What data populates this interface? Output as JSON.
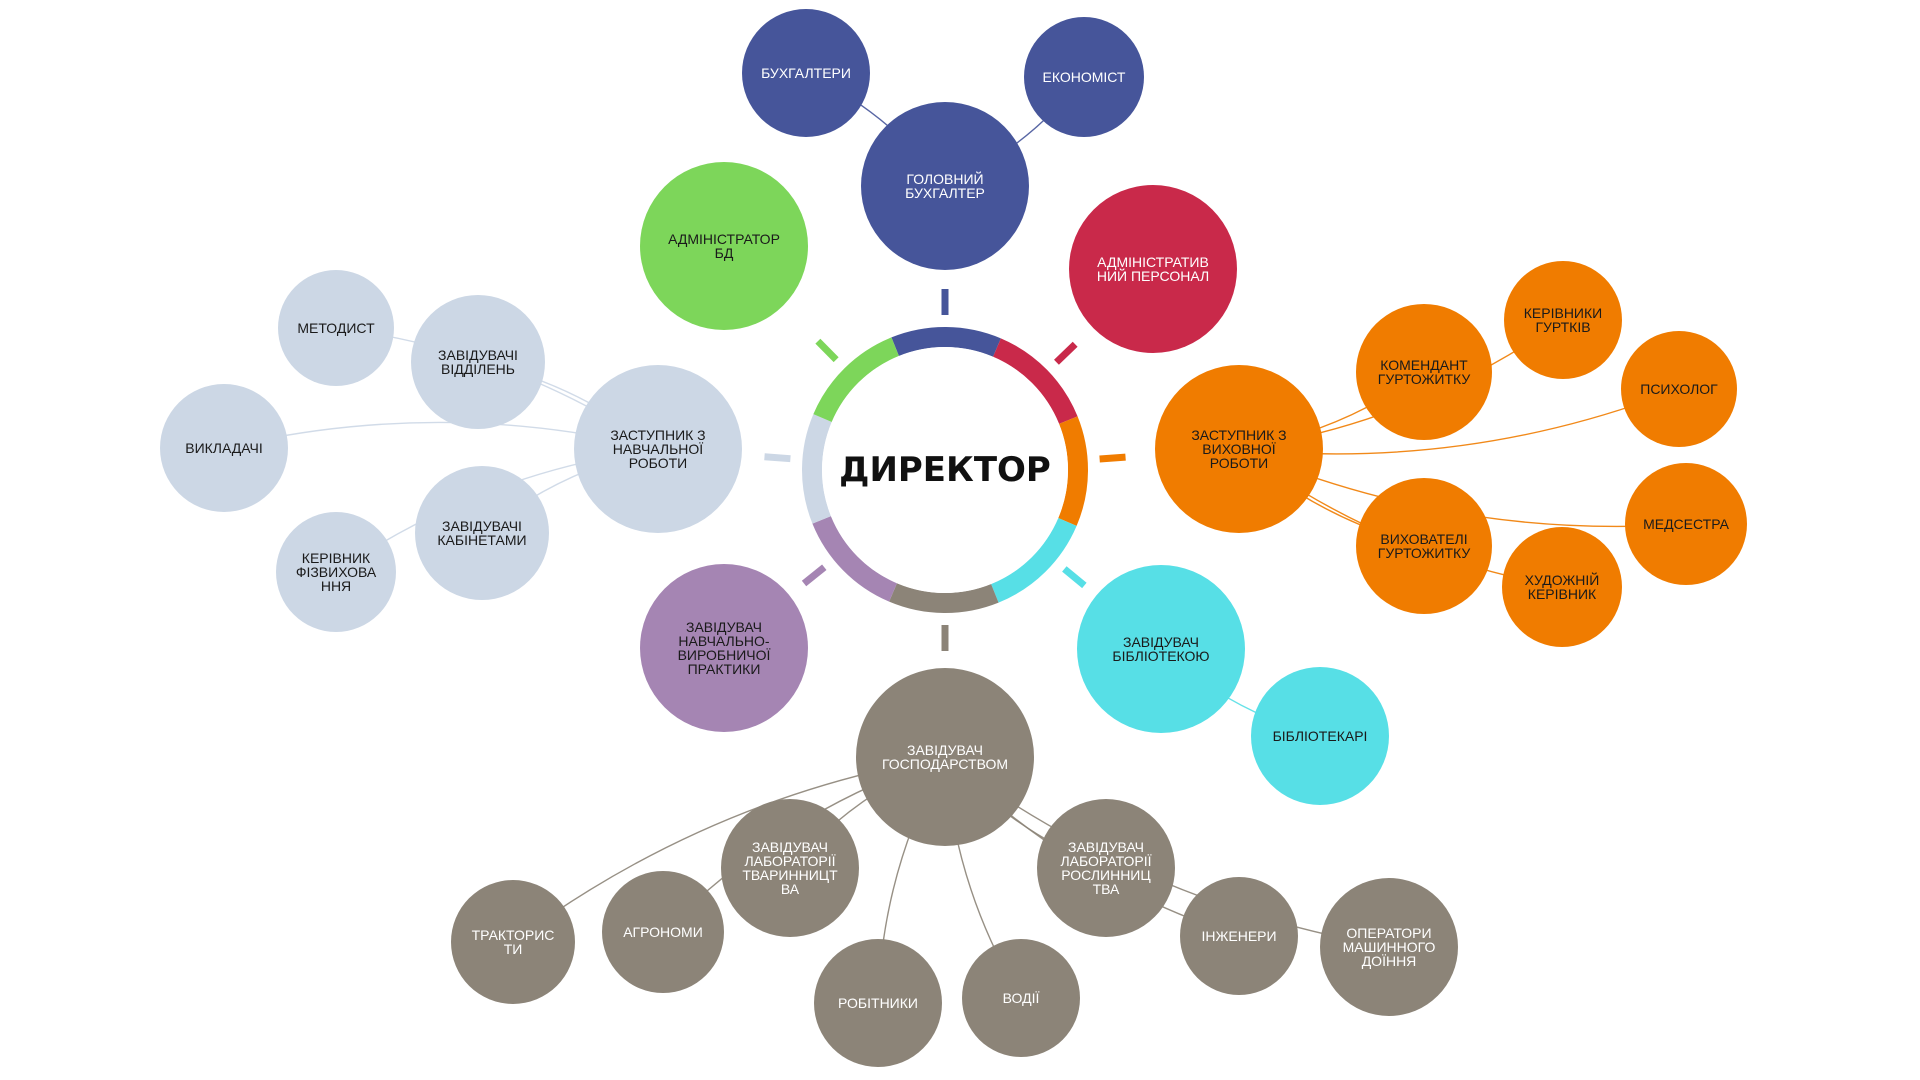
{
  "colors": {
    "accounting": "#46559a",
    "admin_db": "#7dd65a",
    "admin_staff": "#c9294a",
    "education": "#ccd7e5",
    "upbringing": "#f07c00",
    "library": "#57dfe6",
    "practice": "#a585b3",
    "household": "#8c8478",
    "center_ring_fill": "#ffffff",
    "text_light": "#ffffff",
    "text_dark": "#1a1a1a"
  },
  "center": {
    "label": "ДИРЕКТОР"
  },
  "nodes": [
    {
      "id": "chief-accountant",
      "group": "accounting",
      "lines": [
        "ГОЛОВНИЙ",
        "БУХГАЛТЕР"
      ]
    },
    {
      "id": "accountants",
      "group": "accounting",
      "lines": [
        "БУХГАЛТЕРИ"
      ]
    },
    {
      "id": "economist",
      "group": "accounting",
      "lines": [
        "ЕКОНОМІСТ"
      ]
    },
    {
      "id": "admin-db",
      "group": "admin_db",
      "lines": [
        "АДМІНІСТРАТОР",
        "БД"
      ]
    },
    {
      "id": "admin-staff",
      "group": "admin_staff",
      "lines": [
        "АДМІНІСТРАТИВ",
        "НИЙ ПЕРСОНАЛ"
      ]
    },
    {
      "id": "deputy-education",
      "group": "education",
      "lines": [
        "ЗАСТУПНИК З",
        "НАВЧАЛЬНОЇ",
        "РОБОТИ"
      ]
    },
    {
      "id": "methodist",
      "group": "education",
      "lines": [
        "МЕТОДИСТ"
      ]
    },
    {
      "id": "dept-heads",
      "group": "education",
      "lines": [
        "ЗАВІДУВАЧІ",
        "ВІДДІЛЕНЬ"
      ]
    },
    {
      "id": "teachers",
      "group": "education",
      "lines": [
        "ВИКЛАДАЧІ"
      ]
    },
    {
      "id": "cabinet-heads",
      "group": "education",
      "lines": [
        "ЗАВІДУВАЧІ",
        "КАБІНЕТАМИ"
      ]
    },
    {
      "id": "pe-head",
      "group": "education",
      "lines": [
        "КЕРІВНИК",
        "ФІЗВИХОВА",
        "ННЯ"
      ]
    },
    {
      "id": "deputy-upbringing",
      "group": "upbringing",
      "lines": [
        "ЗАСТУПНИК З",
        "ВИХОВНОЇ",
        "РОБОТИ"
      ]
    },
    {
      "id": "dorm-commandant",
      "group": "upbringing",
      "lines": [
        "КОМЕНДАНТ",
        "ГУРТОЖИТКУ"
      ]
    },
    {
      "id": "club-heads",
      "group": "upbringing",
      "lines": [
        "КЕРІВНИКИ",
        "ГУРТКІВ"
      ]
    },
    {
      "id": "psychologist",
      "group": "upbringing",
      "lines": [
        "ПСИХОЛОГ"
      ]
    },
    {
      "id": "nurse",
      "group": "upbringing",
      "lines": [
        "МЕДСЕСТРА"
      ]
    },
    {
      "id": "dorm-tutors",
      "group": "upbringing",
      "lines": [
        "ВИХОВАТЕЛІ",
        "ГУРТОЖИТКУ"
      ]
    },
    {
      "id": "art-director",
      "group": "upbringing",
      "lines": [
        "ХУДОЖНІЙ",
        "КЕРІВНИК"
      ]
    },
    {
      "id": "library-head",
      "group": "library",
      "lines": [
        "ЗАВІДУВАЧ",
        "БІБЛІОТЕКОЮ"
      ]
    },
    {
      "id": "librarians",
      "group": "library",
      "lines": [
        "БІБЛІОТЕКАРІ"
      ]
    },
    {
      "id": "practice-head",
      "group": "practice",
      "lines": [
        "ЗАВІДУВАЧ",
        "НАВЧАЛЬНО-",
        "ВИРОБНИЧОЇ",
        "ПРАКТИКИ"
      ]
    },
    {
      "id": "household-head",
      "group": "household",
      "lines": [
        "ЗАВІДУВАЧ",
        "ГОСПОДАРСТВОМ"
      ]
    },
    {
      "id": "tractor-drivers",
      "group": "household",
      "lines": [
        "ТРАКТОРИС",
        "ТИ"
      ]
    },
    {
      "id": "agronomists",
      "group": "household",
      "lines": [
        "АГРОНОМИ"
      ]
    },
    {
      "id": "livestock-lab-head",
      "group": "household",
      "lines": [
        "ЗАВІДУВАЧ",
        "ЛАБОРАТОРІЇ",
        "ТВАРИННИЦТ",
        "ВА"
      ]
    },
    {
      "id": "workers",
      "group": "household",
      "lines": [
        "РОБІТНИКИ"
      ]
    },
    {
      "id": "drivers",
      "group": "household",
      "lines": [
        "ВОДІЇ"
      ]
    },
    {
      "id": "crop-lab-head",
      "group": "household",
      "lines": [
        "ЗАВІДУВАЧ",
        "ЛАБОРАТОРІЇ",
        "РОСЛИННИЦ",
        "ТВА"
      ]
    },
    {
      "id": "engineers",
      "group": "household",
      "lines": [
        "ІНЖЕНЕРИ"
      ]
    },
    {
      "id": "milking-operators",
      "group": "household",
      "lines": [
        "ОПЕРАТОРИ",
        "МАШИННОГО",
        "ДОЇННЯ"
      ]
    }
  ],
  "edges": [
    [
      "chief-accountant",
      "accountants"
    ],
    [
      "chief-accountant",
      "economist"
    ],
    [
      "deputy-education",
      "methodist"
    ],
    [
      "deputy-education",
      "dept-heads"
    ],
    [
      "deputy-education",
      "teachers"
    ],
    [
      "deputy-education",
      "cabinet-heads"
    ],
    [
      "deputy-education",
      "pe-head"
    ],
    [
      "deputy-upbringing",
      "dorm-commandant"
    ],
    [
      "deputy-upbringing",
      "club-heads"
    ],
    [
      "deputy-upbringing",
      "psychologist"
    ],
    [
      "deputy-upbringing",
      "nurse"
    ],
    [
      "deputy-upbringing",
      "dorm-tutors"
    ],
    [
      "deputy-upbringing",
      "art-director"
    ],
    [
      "library-head",
      "librarians"
    ],
    [
      "household-head",
      "tractor-drivers"
    ],
    [
      "household-head",
      "agronomists"
    ],
    [
      "household-head",
      "livestock-lab-head"
    ],
    [
      "household-head",
      "workers"
    ],
    [
      "household-head",
      "drivers"
    ],
    [
      "household-head",
      "crop-lab-head"
    ],
    [
      "household-head",
      "engineers"
    ],
    [
      "household-head",
      "milking-operators"
    ]
  ],
  "ring_order": [
    "accounting",
    "admin_staff",
    "upbringing",
    "library",
    "household",
    "practice",
    "education",
    "admin_db"
  ]
}
